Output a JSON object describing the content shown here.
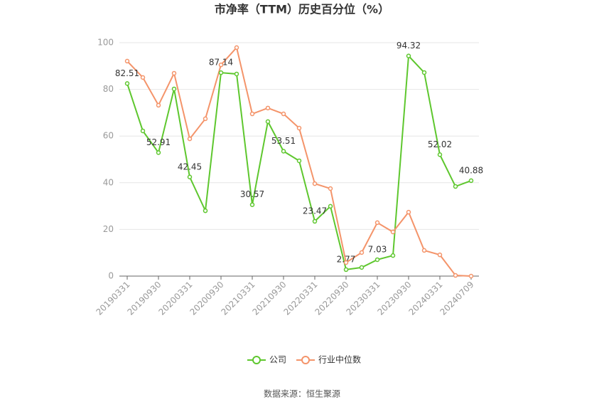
{
  "chart_data": {
    "type": "line",
    "title": "市净率（TTM）历史百分位（%）",
    "categories": [
      "20190331",
      null,
      "20190930",
      null,
      "20200331",
      null,
      "20200930",
      null,
      "20210331",
      null,
      "20210930",
      null,
      "20220331",
      null,
      "20220930",
      null,
      "20230331",
      null,
      "20230930",
      null,
      "20240331",
      null,
      "20240709"
    ],
    "series": [
      {
        "name": "公司",
        "color": "#5ec72e",
        "values": [
          82.51,
          62.2,
          52.91,
          80.2,
          42.45,
          28.0,
          87.14,
          86.6,
          30.57,
          66.2,
          53.51,
          49.4,
          23.47,
          29.9,
          2.77,
          3.7,
          7.03,
          8.8,
          94.32,
          87.2,
          52.02,
          38.4,
          40.88
        ],
        "value_labels": [
          "82.51",
          null,
          "52.91",
          null,
          "42.45",
          null,
          "87.14",
          null,
          "30.57",
          null,
          "53.51",
          null,
          "23.47",
          null,
          "2.77",
          null,
          "7.03",
          null,
          "94.32",
          null,
          "52.02",
          null,
          "40.88"
        ]
      },
      {
        "name": "行业中位数",
        "color": "#f4946a",
        "values": [
          92.1,
          85.1,
          73.2,
          86.9,
          58.8,
          67.4,
          90.5,
          97.9,
          69.5,
          72.0,
          69.5,
          63.4,
          39.6,
          37.5,
          5.8,
          10.1,
          22.9,
          18.9,
          27.4,
          11.0,
          9.1,
          0.3,
          0
        ]
      }
    ],
    "ylim": [
      0,
      100
    ],
    "yticks": [
      0,
      20,
      40,
      60,
      80,
      100
    ],
    "grid": true,
    "source": "数据来源：恒生聚源"
  }
}
